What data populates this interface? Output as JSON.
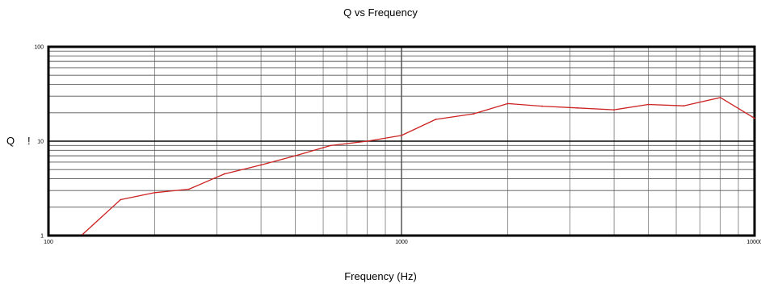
{
  "chart_data": {
    "type": "line",
    "title": "Q vs Frequency",
    "xlabel": "Frequency (Hz)",
    "ylabel": "Q",
    "ylabel_mark": "!",
    "x_scale": "log",
    "y_scale": "log",
    "xlim": [
      100,
      10000
    ],
    "ylim": [
      1,
      100
    ],
    "x_ticks": [
      100,
      1000,
      10000
    ],
    "x_tick_labels": [
      "100",
      "1000",
      "10000"
    ],
    "y_ticks": [
      1,
      10,
      100
    ],
    "y_tick_labels": [
      "1",
      "10",
      "100"
    ],
    "grid": true,
    "series": [
      {
        "color": "#cc2222",
        "points": [
          {
            "x": 125,
            "y": 1.03
          },
          {
            "x": 160,
            "y": 2.4
          },
          {
            "x": 200,
            "y": 2.85
          },
          {
            "x": 250,
            "y": 3.1
          },
          {
            "x": 315,
            "y": 4.5
          },
          {
            "x": 400,
            "y": 5.6
          },
          {
            "x": 500,
            "y": 7.0
          },
          {
            "x": 630,
            "y": 9.0
          },
          {
            "x": 800,
            "y": 10.0
          },
          {
            "x": 1000,
            "y": 11.5
          },
          {
            "x": 1250,
            "y": 17.0
          },
          {
            "x": 1600,
            "y": 19.5
          },
          {
            "x": 2000,
            "y": 25.0
          },
          {
            "x": 2500,
            "y": 23.5
          },
          {
            "x": 3150,
            "y": 22.5
          },
          {
            "x": 4000,
            "y": 21.5
          },
          {
            "x": 5000,
            "y": 24.5
          },
          {
            "x": 6300,
            "y": 23.7
          },
          {
            "x": 8000,
            "y": 29.0
          },
          {
            "x": 10000,
            "y": 17.5
          }
        ]
      }
    ]
  }
}
